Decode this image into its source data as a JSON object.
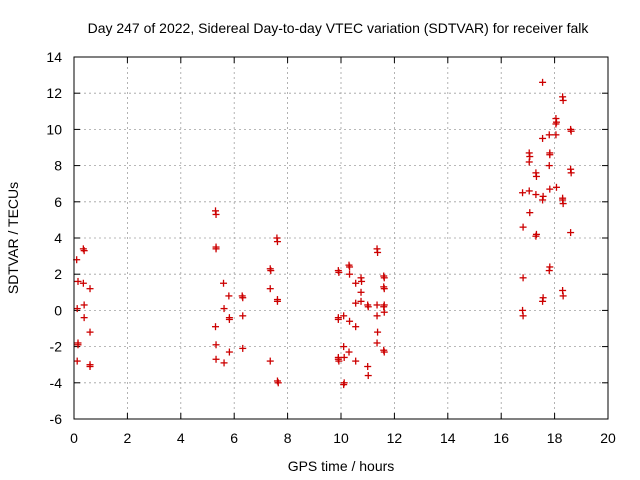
{
  "chart_data": {
    "type": "scatter",
    "title": "Day 247 of 2022, Sidereal Day-to-day VTEC variation (SDTVAR) for receiver falk",
    "xlabel": "GPS time / hours",
    "ylabel": "SDTVAR / TECUs",
    "xlim": [
      0,
      20
    ],
    "ylim": [
      -6,
      14
    ],
    "xticks": [
      0,
      2,
      4,
      6,
      8,
      10,
      12,
      14,
      16,
      18,
      20
    ],
    "yticks": [
      -6,
      -4,
      -2,
      0,
      2,
      4,
      6,
      8,
      10,
      12,
      14
    ],
    "grid": true,
    "marker": "plus",
    "color": "#cc0000",
    "series": [
      {
        "name": "SDTVAR",
        "points": [
          [
            0.1,
            2.8
          ],
          [
            0.12,
            0.1
          ],
          [
            0.15,
            -1.8
          ],
          [
            0.15,
            -1.9
          ],
          [
            0.12,
            -2.8
          ],
          [
            0.15,
            1.6
          ],
          [
            0.35,
            3.4
          ],
          [
            0.38,
            3.3
          ],
          [
            0.35,
            1.5
          ],
          [
            0.38,
            0.3
          ],
          [
            0.38,
            -0.4
          ],
          [
            0.6,
            1.2
          ],
          [
            0.6,
            -1.2
          ],
          [
            0.6,
            -3.0
          ],
          [
            0.6,
            -3.1
          ],
          [
            5.3,
            5.5
          ],
          [
            5.32,
            5.3
          ],
          [
            5.32,
            3.5
          ],
          [
            5.32,
            3.4
          ],
          [
            5.3,
            -0.9
          ],
          [
            5.32,
            -1.9
          ],
          [
            5.32,
            -2.7
          ],
          [
            5.6,
            1.5
          ],
          [
            5.62,
            0.1
          ],
          [
            5.62,
            -2.9
          ],
          [
            5.8,
            0.8
          ],
          [
            5.82,
            -0.4
          ],
          [
            5.82,
            -0.5
          ],
          [
            5.82,
            -2.3
          ],
          [
            6.3,
            0.8
          ],
          [
            6.32,
            0.7
          ],
          [
            6.32,
            -0.3
          ],
          [
            6.32,
            -2.1
          ],
          [
            7.35,
            2.3
          ],
          [
            7.37,
            2.2
          ],
          [
            7.35,
            1.2
          ],
          [
            7.35,
            -2.8
          ],
          [
            7.6,
            4.0
          ],
          [
            7.62,
            3.8
          ],
          [
            7.62,
            0.6
          ],
          [
            7.62,
            0.5
          ],
          [
            7.62,
            -3.9
          ],
          [
            7.65,
            -4.0
          ],
          [
            9.9,
            2.2
          ],
          [
            9.92,
            2.1
          ],
          [
            9.9,
            -0.4
          ],
          [
            9.9,
            -0.5
          ],
          [
            9.9,
            -2.6
          ],
          [
            9.9,
            -2.7
          ],
          [
            9.92,
            -2.8
          ],
          [
            10.1,
            -0.3
          ],
          [
            10.1,
            -2.0
          ],
          [
            10.12,
            -2.6
          ],
          [
            10.12,
            -4.0
          ],
          [
            10.1,
            -4.1
          ],
          [
            10.3,
            2.5
          ],
          [
            10.32,
            2.4
          ],
          [
            10.32,
            2.0
          ],
          [
            10.32,
            -0.6
          ],
          [
            10.3,
            -2.3
          ],
          [
            10.55,
            1.5
          ],
          [
            10.55,
            0.4
          ],
          [
            10.55,
            -0.9
          ],
          [
            10.55,
            -2.8
          ],
          [
            10.75,
            1.8
          ],
          [
            10.77,
            1.6
          ],
          [
            10.75,
            1.0
          ],
          [
            10.75,
            0.5
          ],
          [
            11.0,
            0.3
          ],
          [
            11.02,
            0.2
          ],
          [
            11.0,
            -3.1
          ],
          [
            11.02,
            -3.6
          ],
          [
            11.35,
            3.4
          ],
          [
            11.37,
            3.2
          ],
          [
            11.35,
            0.3
          ],
          [
            11.35,
            -0.3
          ],
          [
            11.37,
            -1.2
          ],
          [
            11.35,
            -1.8
          ],
          [
            11.6,
            1.9
          ],
          [
            11.62,
            1.8
          ],
          [
            11.6,
            1.3
          ],
          [
            11.62,
            1.2
          ],
          [
            11.62,
            0.3
          ],
          [
            11.6,
            0.2
          ],
          [
            11.62,
            -0.1
          ],
          [
            11.6,
            -2.2
          ],
          [
            11.62,
            -2.3
          ],
          [
            16.8,
            6.5
          ],
          [
            16.82,
            4.6
          ],
          [
            16.82,
            1.8
          ],
          [
            16.8,
            0.0
          ],
          [
            16.82,
            -0.3
          ],
          [
            17.05,
            8.7
          ],
          [
            17.07,
            8.5
          ],
          [
            17.05,
            8.2
          ],
          [
            17.05,
            6.6
          ],
          [
            17.07,
            5.4
          ],
          [
            17.3,
            7.6
          ],
          [
            17.32,
            7.4
          ],
          [
            17.3,
            6.4
          ],
          [
            17.32,
            4.2
          ],
          [
            17.3,
            4.1
          ],
          [
            17.55,
            12.6
          ],
          [
            17.55,
            9.5
          ],
          [
            17.57,
            6.3
          ],
          [
            17.55,
            6.1
          ],
          [
            17.57,
            0.7
          ],
          [
            17.55,
            0.5
          ],
          [
            17.8,
            9.7
          ],
          [
            17.82,
            8.7
          ],
          [
            17.82,
            8.6
          ],
          [
            17.8,
            8.0
          ],
          [
            17.82,
            6.7
          ],
          [
            17.82,
            2.4
          ],
          [
            17.8,
            2.2
          ],
          [
            18.05,
            10.6
          ],
          [
            18.07,
            10.4
          ],
          [
            18.05,
            10.3
          ],
          [
            18.05,
            9.7
          ],
          [
            18.07,
            6.8
          ],
          [
            18.3,
            11.8
          ],
          [
            18.32,
            11.6
          ],
          [
            18.3,
            6.2
          ],
          [
            18.3,
            6.1
          ],
          [
            18.32,
            5.9
          ],
          [
            18.3,
            1.1
          ],
          [
            18.32,
            0.8
          ],
          [
            18.6,
            10.0
          ],
          [
            18.62,
            9.9
          ],
          [
            18.6,
            7.8
          ],
          [
            18.62,
            7.6
          ],
          [
            18.6,
            4.3
          ]
        ]
      }
    ]
  }
}
